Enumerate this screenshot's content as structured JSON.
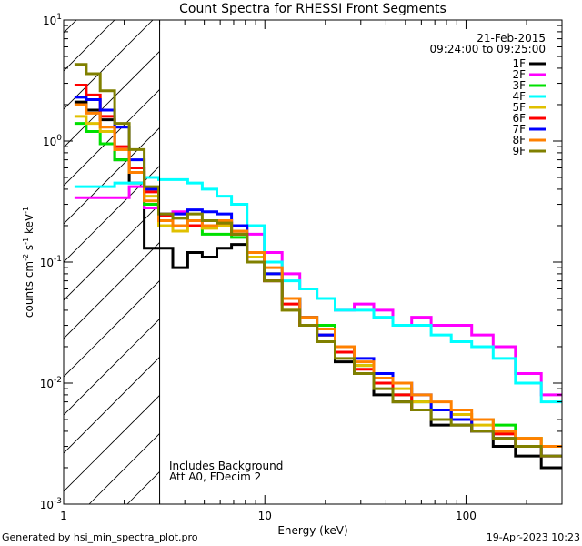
{
  "chart_data": {
    "type": "line",
    "title": "Count Spectra for RHESSI Front Segments",
    "xlabel": "Energy (keV)",
    "ylabel_parts": [
      "counts cm",
      "-2",
      " s",
      "-1",
      " keV",
      "-1"
    ],
    "xscale": "log",
    "yscale": "log",
    "xlim": [
      1,
      300
    ],
    "ylim": [
      0.001,
      10
    ],
    "x_ticks": [
      {
        "value": 1,
        "label": "1"
      },
      {
        "value": 10,
        "label": "10"
      },
      {
        "value": 100,
        "label": "100"
      }
    ],
    "y_ticks": [
      {
        "value": 10,
        "base": "10",
        "exp": "1"
      },
      {
        "value": 1,
        "base": "10",
        "exp": "0"
      },
      {
        "value": 0.1,
        "base": "10",
        "exp": "-1"
      },
      {
        "value": 0.01,
        "base": "10",
        "exp": "-2"
      },
      {
        "value": 0.001,
        "base": "10",
        "exp": "-3"
      }
    ],
    "date": "21-Feb-2015",
    "time_range": "09:24:00 to 09:25:00",
    "shaded_region": {
      "x_from": 1,
      "x_to": 3,
      "pattern": "diagonal-hatch"
    },
    "annotations": [
      "Includes Background",
      "Att A0, FDecim 2"
    ],
    "series": [
      {
        "name": "1F",
        "color": "#000000",
        "values": [
          2.1,
          1.8,
          1.5,
          0.7,
          0.45,
          0.13,
          0.13,
          0.09,
          0.12,
          0.11,
          0.13,
          0.14,
          0.1,
          0.07,
          0.05,
          0.03,
          0.025,
          0.015,
          0.012,
          0.008,
          0.007,
          0.006,
          0.0045,
          0.0045,
          0.004,
          0.003,
          0.0025,
          0.002
        ]
      },
      {
        "name": "2F",
        "color": "#ff00ff",
        "values": [
          0.34,
          0.34,
          0.34,
          0.34,
          0.42,
          0.28,
          0.25,
          0.26,
          0.22,
          0.2,
          0.22,
          0.2,
          0.17,
          0.12,
          0.08,
          0.06,
          0.05,
          0.04,
          0.045,
          0.04,
          0.03,
          0.035,
          0.03,
          0.03,
          0.025,
          0.02,
          0.012,
          0.008
        ]
      },
      {
        "name": "3F",
        "color": "#00e000",
        "values": [
          1.4,
          1.2,
          0.95,
          0.7,
          0.55,
          0.3,
          0.22,
          0.2,
          0.2,
          0.17,
          0.17,
          0.16,
          0.12,
          0.08,
          0.05,
          0.035,
          0.03,
          0.02,
          0.014,
          0.01,
          0.008,
          0.007,
          0.006,
          0.005,
          0.005,
          0.0045,
          0.0035,
          0.003
        ]
      },
      {
        "name": "4F",
        "color": "#00ffff",
        "values": [
          0.42,
          0.42,
          0.42,
          0.45,
          0.45,
          0.5,
          0.48,
          0.48,
          0.45,
          0.4,
          0.35,
          0.3,
          0.2,
          0.1,
          0.07,
          0.06,
          0.05,
          0.04,
          0.04,
          0.035,
          0.03,
          0.03,
          0.025,
          0.022,
          0.02,
          0.016,
          0.01,
          0.007
        ]
      },
      {
        "name": "5F",
        "color": "#e0c000",
        "values": [
          1.6,
          1.4,
          1.2,
          0.85,
          0.6,
          0.35,
          0.2,
          0.18,
          0.2,
          0.19,
          0.2,
          0.17,
          0.11,
          0.08,
          0.04,
          0.03,
          0.025,
          0.02,
          0.014,
          0.011,
          0.009,
          0.007,
          0.006,
          0.0055,
          0.0045,
          0.004,
          0.0035,
          0.003
        ]
      },
      {
        "name": "6F",
        "color": "#ff0000",
        "values": [
          2.9,
          2.4,
          1.6,
          0.9,
          0.6,
          0.38,
          0.24,
          0.2,
          0.2,
          0.2,
          0.21,
          0.17,
          0.1,
          0.07,
          0.045,
          0.03,
          0.025,
          0.018,
          0.013,
          0.01,
          0.008,
          0.006,
          0.006,
          0.005,
          0.004,
          0.0038,
          0.003,
          0.0025
        ]
      },
      {
        "name": "7F",
        "color": "#0000ff",
        "values": [
          2.3,
          2.2,
          1.8,
          1.3,
          0.7,
          0.4,
          0.25,
          0.25,
          0.27,
          0.26,
          0.25,
          0.2,
          0.12,
          0.08,
          0.05,
          0.035,
          0.025,
          0.02,
          0.016,
          0.012,
          0.01,
          0.008,
          0.006,
          0.005,
          0.004,
          0.0035,
          0.003,
          0.0025
        ]
      },
      {
        "name": "8F",
        "color": "#ff8000",
        "values": [
          2.0,
          1.7,
          1.3,
          0.85,
          0.55,
          0.32,
          0.22,
          0.2,
          0.22,
          0.2,
          0.22,
          0.18,
          0.12,
          0.09,
          0.05,
          0.035,
          0.028,
          0.02,
          0.015,
          0.011,
          0.01,
          0.008,
          0.007,
          0.006,
          0.005,
          0.004,
          0.0035,
          0.003
        ]
      },
      {
        "name": "9F",
        "color": "#808000",
        "values": [
          4.3,
          3.6,
          2.6,
          1.4,
          0.85,
          0.42,
          0.25,
          0.23,
          0.25,
          0.22,
          0.21,
          0.17,
          0.1,
          0.07,
          0.04,
          0.03,
          0.022,
          0.016,
          0.012,
          0.009,
          0.007,
          0.006,
          0.005,
          0.0045,
          0.004,
          0.0035,
          0.003,
          0.0025
        ]
      }
    ],
    "x": [
      1.2,
      1.4,
      1.65,
      1.95,
      2.3,
      2.75,
      3.2,
      3.8,
      4.5,
      5.3,
      6.3,
      7.4,
      9.0,
      11.0,
      13.5,
      16.5,
      20.0,
      25.0,
      31.0,
      39.0,
      48.0,
      60.0,
      75.0,
      95.0,
      120.0,
      155.0,
      200.0,
      280.0
    ]
  },
  "footer": {
    "left": "Generated by hsi_min_spectra_plot.pro",
    "right": "19-Apr-2023 10:23"
  }
}
